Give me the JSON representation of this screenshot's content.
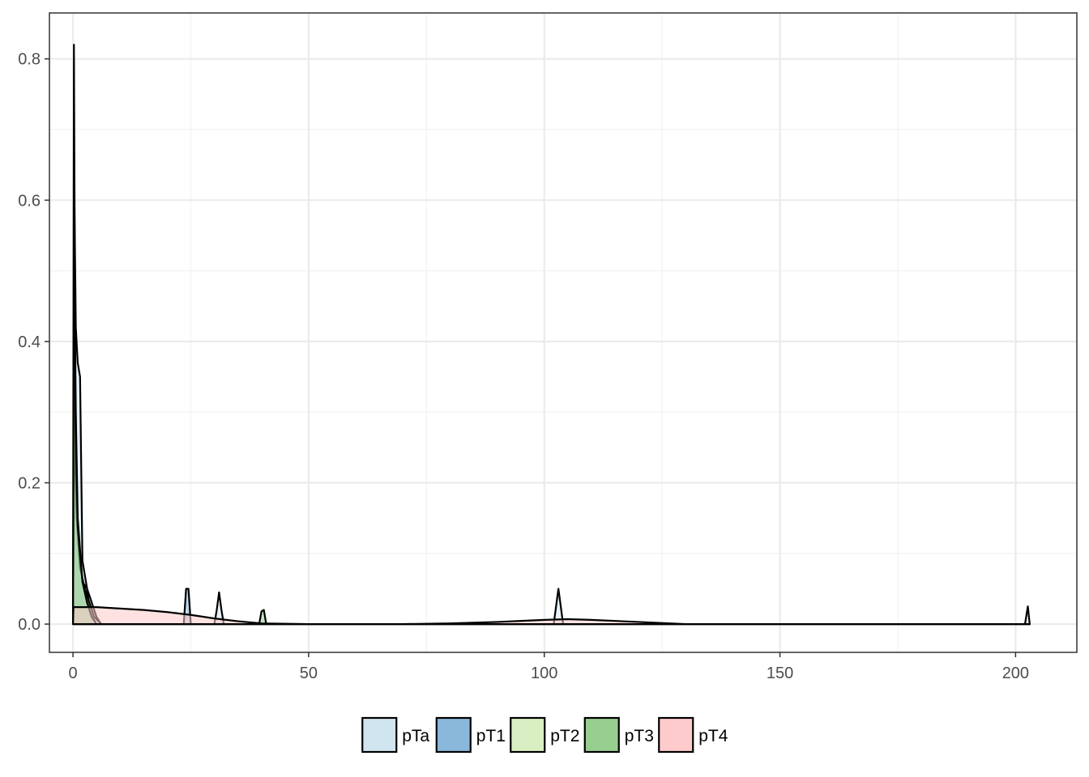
{
  "chart_data": {
    "type": "area",
    "chart_kind": "density",
    "title": "",
    "xlabel": "",
    "ylabel": "",
    "xlim": [
      -5,
      213
    ],
    "ylim": [
      -0.04,
      0.865
    ],
    "x_ticks": [
      0,
      50,
      100,
      150,
      200
    ],
    "x_tick_labels": [
      "0",
      "50",
      "100",
      "150",
      "200"
    ],
    "y_ticks": [
      0.0,
      0.2,
      0.4,
      0.6,
      0.8
    ],
    "y_tick_labels": [
      "0.0",
      "0.2",
      "0.4",
      "0.6",
      "0.8"
    ],
    "grid": true,
    "legend_position": "bottom",
    "series": [
      {
        "name": "pTa",
        "color": "#d1e5f0",
        "x": [
          0,
          0.3,
          0.6,
          1.0,
          1.5,
          2.0,
          3.0,
          4.0,
          5.0,
          6.0,
          8.0,
          10.0,
          20.0,
          30.0,
          30.5,
          31.0,
          31.5,
          32.0,
          35.0,
          40.0,
          60.0,
          100.0,
          102.0,
          103.0,
          104.0,
          106.0,
          150.0,
          202.0,
          202.6,
          203.0
        ],
        "y": [
          0,
          0.6,
          0.42,
          0.37,
          0.35,
          0.09,
          0.05,
          0.03,
          0.01,
          0.0,
          0.0,
          0.0,
          0.0,
          0.0,
          0.02,
          0.045,
          0.02,
          0.0,
          0.0,
          0.0,
          0.0,
          0.0,
          0.0,
          0.05,
          0.0,
          0.0,
          0.0,
          0.0,
          0.025,
          0.0
        ]
      },
      {
        "name": "pT1",
        "color": "#89b8db",
        "x": [
          0,
          0.3,
          0.6,
          1.0,
          2.0,
          3.0,
          3.5,
          4.0,
          5.0,
          10.0,
          20.0,
          23.5,
          24.0,
          24.5,
          25.0,
          26.0,
          30.0,
          60.0,
          120.0,
          203.0
        ],
        "y": [
          0,
          0.5,
          0.3,
          0.15,
          0.06,
          0.05,
          0.02,
          0.01,
          0.0,
          0.0,
          0.0,
          0.0,
          0.05,
          0.05,
          0.0,
          0.0,
          0.0,
          0.0,
          0.0,
          0.0
        ]
      },
      {
        "name": "pT2",
        "color": "#d9efc3",
        "x": [
          0,
          0.3,
          0.8,
          1.5,
          2.5,
          3.5,
          4.5,
          6.0,
          8.0,
          10.0,
          15.0,
          20.0,
          30.0,
          60.0,
          120.0,
          203.0
        ],
        "y": [
          0,
          0.3,
          0.15,
          0.08,
          0.05,
          0.03,
          0.01,
          0.0,
          0.0,
          0.0,
          0.0,
          0.0,
          0.0,
          0.0,
          0.0,
          0.0
        ]
      },
      {
        "name": "pT3",
        "color": "#98cf91",
        "x": [
          0,
          0.2,
          0.5,
          1.0,
          1.5,
          2.0,
          3.0,
          4.0,
          5.0,
          10.0,
          20.0,
          39.5,
          40.0,
          40.5,
          41.0,
          42.0,
          60.0,
          120.0,
          203.0
        ],
        "y": [
          0,
          0.82,
          0.3,
          0.14,
          0.1,
          0.06,
          0.03,
          0.01,
          0.0,
          0.0,
          0.0,
          0.0,
          0.018,
          0.02,
          0.0,
          0.0,
          0.0,
          0.0,
          0.0
        ]
      },
      {
        "name": "pT4",
        "color": "#fdcbcb",
        "x": [
          0,
          0.1,
          5.0,
          10.0,
          15.0,
          20.0,
          25.0,
          30.0,
          35.0,
          40.0,
          50.0,
          70.0,
          80.0,
          90.0,
          100.0,
          105.0,
          110.0,
          120.0,
          130.0,
          150.0,
          203.0
        ],
        "y": [
          0,
          0.024,
          0.024,
          0.022,
          0.02,
          0.017,
          0.013,
          0.008,
          0.004,
          0.001,
          0.0,
          0.0,
          0.001,
          0.003,
          0.006,
          0.007,
          0.006,
          0.003,
          0.0,
          0.0,
          0.0
        ]
      }
    ]
  }
}
